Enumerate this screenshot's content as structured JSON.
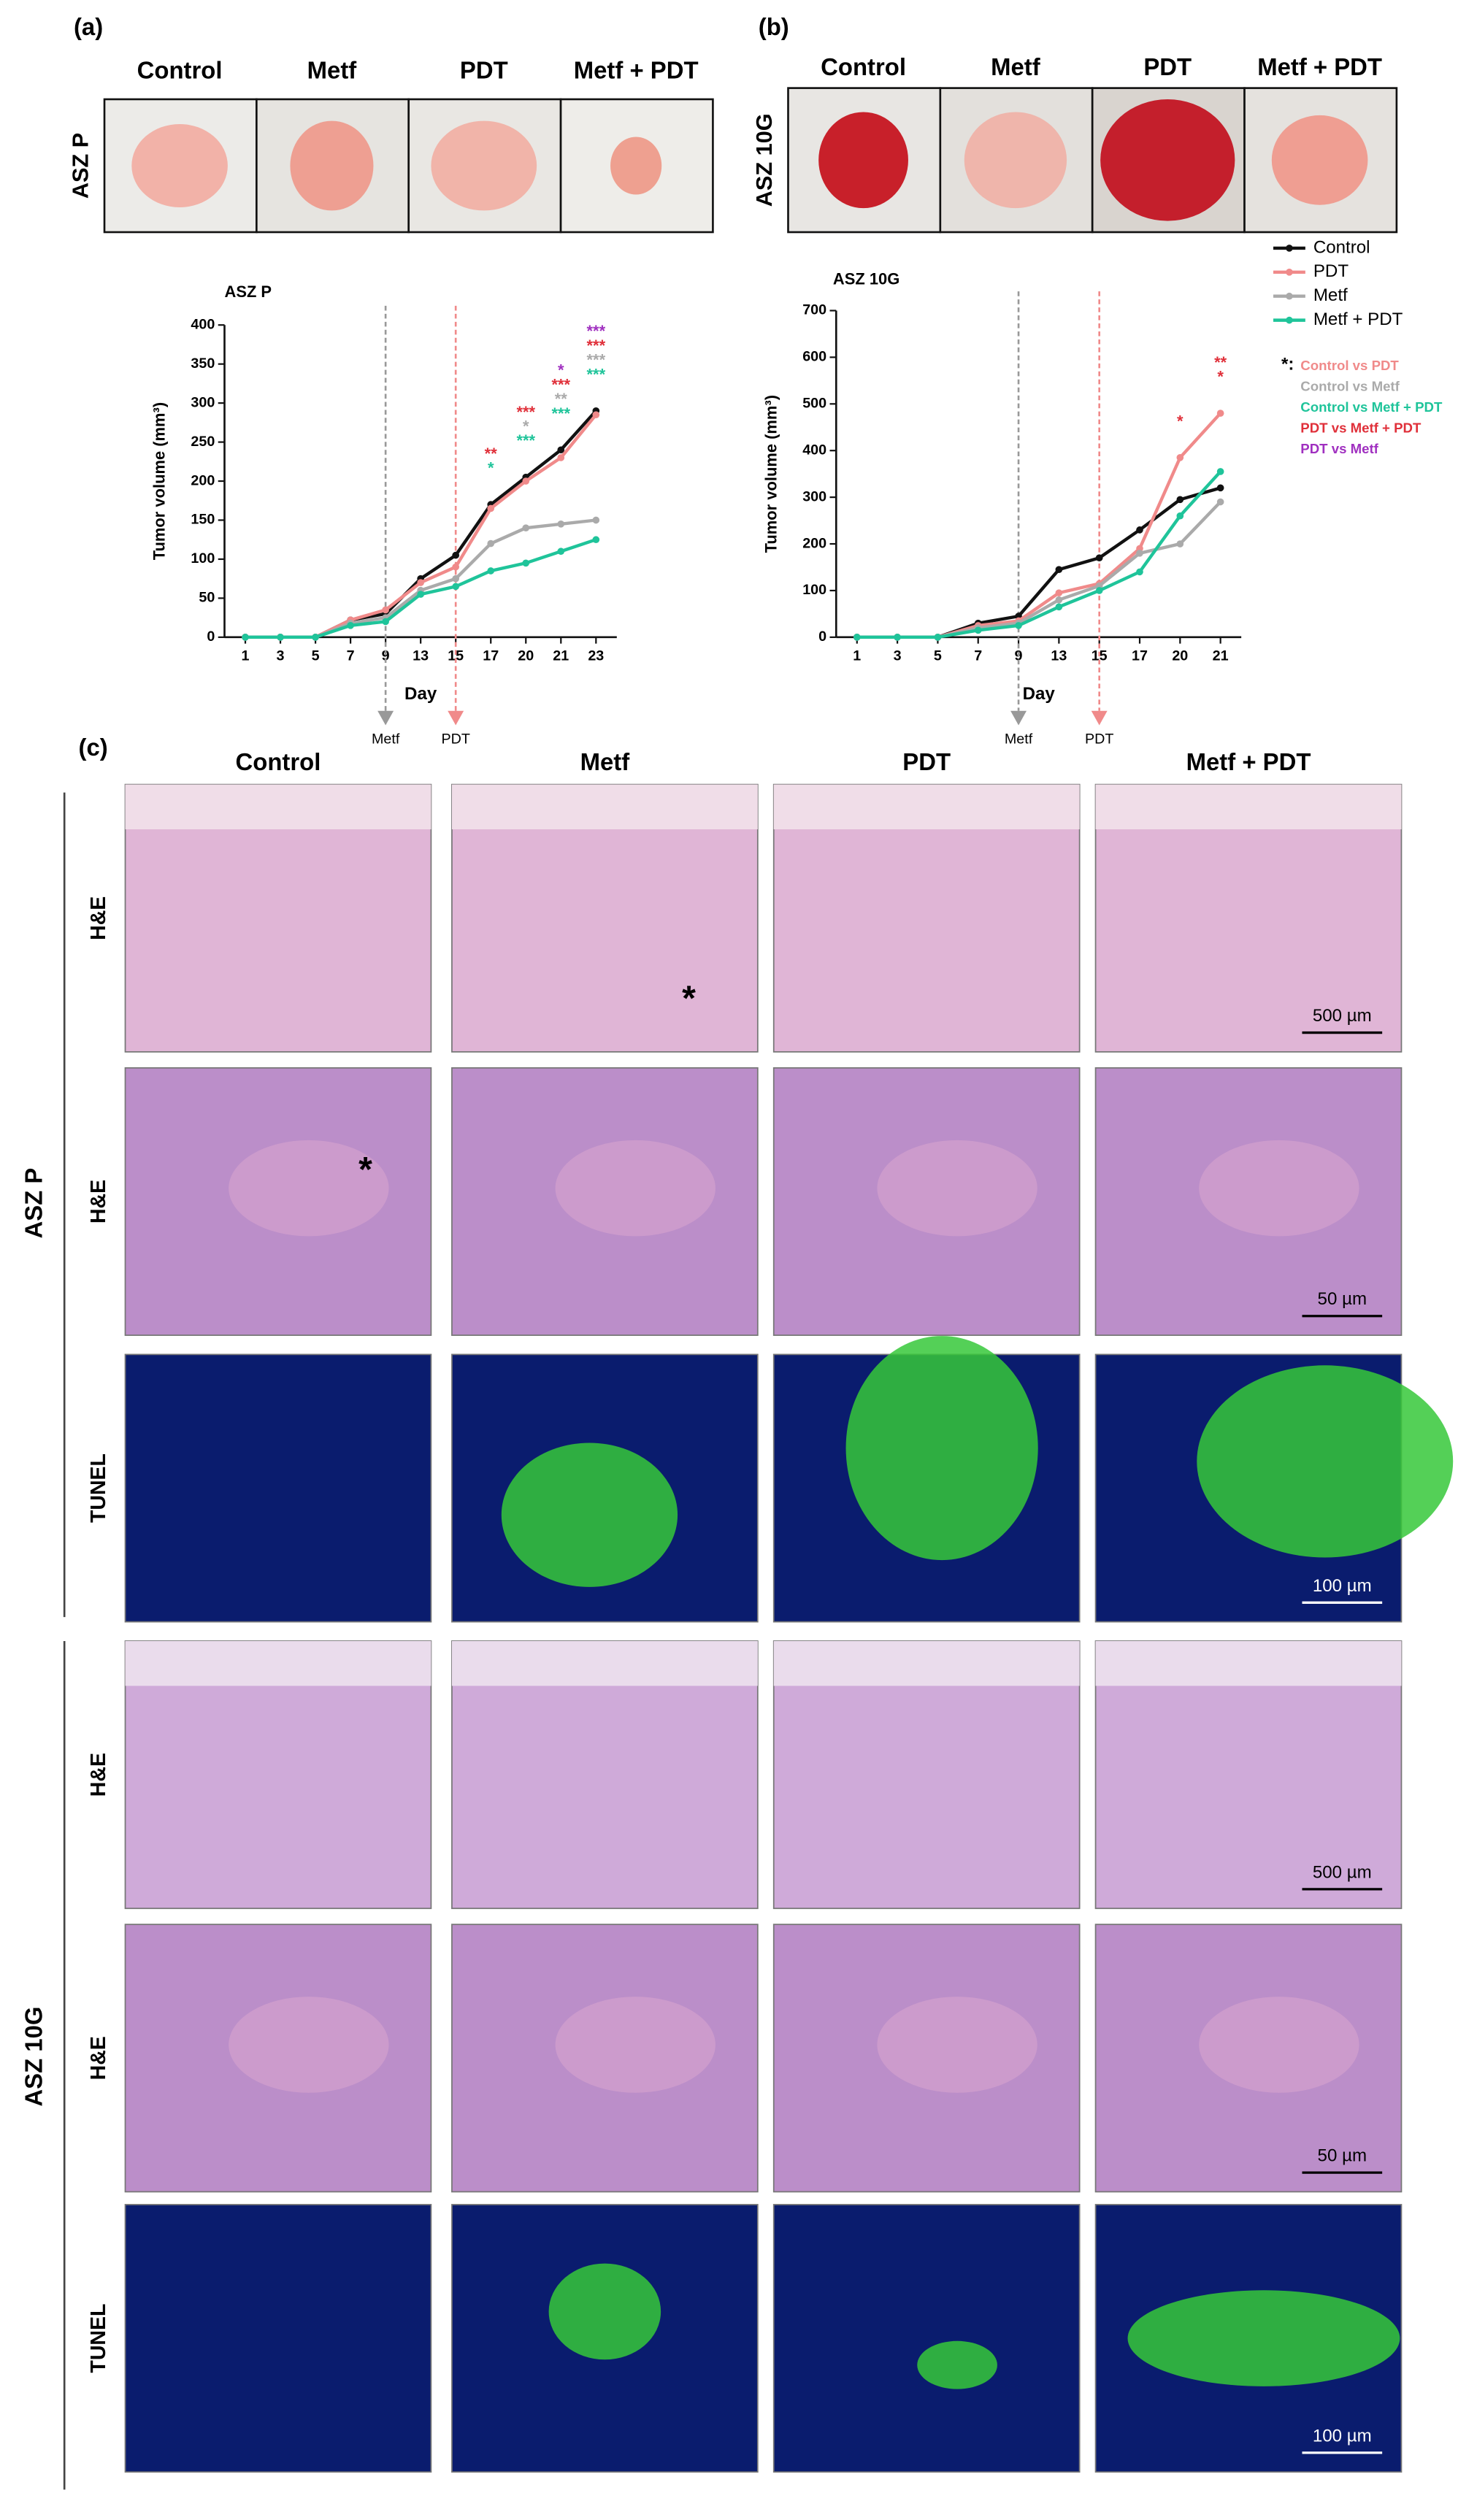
{
  "labels": {
    "a": "(a)",
    "b": "(b)",
    "c": "(c)"
  },
  "photos_a": {
    "row_label": "ASZ P",
    "columns": [
      "Control",
      "Metf",
      "PDT",
      "Metf + PDT"
    ]
  },
  "photos_b": {
    "row_label": "ASZ 10G",
    "columns": [
      "Control",
      "Metf",
      "PDT",
      "Metf + PDT"
    ]
  },
  "histology": {
    "columns": [
      "Control",
      "Metf",
      "PDT",
      "Metf + PDT"
    ],
    "groups": [
      {
        "label": "ASZ P",
        "rows": [
          {
            "stain": "H&E",
            "scale_bar": "500 µm",
            "asterisk": [
              null,
              "*",
              null,
              null
            ]
          },
          {
            "stain": "H&E",
            "scale_bar": "50 µm",
            "asterisk": [
              "*",
              null,
              null,
              null
            ]
          },
          {
            "stain": "TUNEL",
            "scale_bar": "100 µm",
            "asterisk": [
              null,
              null,
              null,
              null
            ]
          }
        ]
      },
      {
        "label": "ASZ 10G",
        "rows": [
          {
            "stain": "H&E",
            "scale_bar": "500 µm",
            "asterisk": [
              null,
              null,
              null,
              null
            ]
          },
          {
            "stain": "H&E",
            "scale_bar": "50 µm",
            "asterisk": [
              null,
              null,
              null,
              null
            ]
          },
          {
            "stain": "TUNEL",
            "scale_bar": "100 µm",
            "asterisk": [
              null,
              null,
              null,
              null
            ]
          }
        ]
      }
    ]
  },
  "chart_data": [
    {
      "type": "line",
      "title": "ASZ P",
      "x_label": "Day",
      "y_label": "Tumor volume (mm³)",
      "categories": [
        "1",
        "3",
        "5",
        "7",
        "9",
        "13",
        "15",
        "17",
        "20",
        "21",
        "23"
      ],
      "ylim": [
        0,
        400
      ],
      "yticks": [
        0,
        50,
        100,
        150,
        200,
        250,
        300,
        350,
        400
      ],
      "legend": false,
      "series": [
        {
          "name": "Control",
          "color": "#111111",
          "values": [
            0,
            0,
            0,
            22,
            30,
            75,
            105,
            170,
            205,
            240,
            290
          ]
        },
        {
          "name": "PDT",
          "color": "#f08a8a",
          "values": [
            0,
            0,
            0,
            22,
            35,
            70,
            90,
            165,
            200,
            230,
            285
          ]
        },
        {
          "name": "Metf",
          "color": "#aaaaaa",
          "values": [
            0,
            0,
            0,
            18,
            25,
            60,
            75,
            120,
            140,
            145,
            150
          ]
        },
        {
          "name": "Metf + PDT",
          "color": "#1fc49a",
          "values": [
            0,
            0,
            0,
            15,
            20,
            55,
            65,
            85,
            95,
            110,
            125
          ]
        }
      ],
      "annotations": [
        {
          "at": "9",
          "label": "Metf",
          "color": "#999999"
        },
        {
          "at": "15",
          "label": "PDT",
          "color": "#f08a8a"
        }
      ],
      "significance": [
        {
          "at": "17",
          "marks": [
            {
              "text": "**",
              "color": "#e0303a"
            },
            {
              "text": "*",
              "color": "#1fc49a"
            }
          ]
        },
        {
          "at": "20",
          "marks": [
            {
              "text": "***",
              "color": "#e0303a"
            },
            {
              "text": "*",
              "color": "#aaaaaa"
            },
            {
              "text": "***",
              "color": "#1fc49a"
            }
          ]
        },
        {
          "at": "21",
          "marks": [
            {
              "text": "*",
              "color": "#a030c0"
            },
            {
              "text": "***",
              "color": "#e0303a"
            },
            {
              "text": "**",
              "color": "#aaaaaa"
            },
            {
              "text": "***",
              "color": "#1fc49a"
            }
          ]
        },
        {
          "at": "23",
          "marks": [
            {
              "text": "***",
              "color": "#a030c0"
            },
            {
              "text": "***",
              "color": "#e0303a"
            },
            {
              "text": "***",
              "color": "#aaaaaa"
            },
            {
              "text": "***",
              "color": "#1fc49a"
            }
          ]
        }
      ]
    },
    {
      "type": "line",
      "title": "ASZ 10G",
      "x_label": "Day",
      "y_label": "Tumor volume (mm³)",
      "categories": [
        "1",
        "3",
        "5",
        "7",
        "9",
        "13",
        "15",
        "17",
        "20",
        "21"
      ],
      "ylim": [
        0,
        700
      ],
      "yticks": [
        0,
        100,
        200,
        300,
        400,
        500,
        600,
        700
      ],
      "legend": true,
      "series": [
        {
          "name": "Control",
          "color": "#111111",
          "values": [
            0,
            0,
            0,
            30,
            45,
            145,
            170,
            230,
            295,
            320
          ]
        },
        {
          "name": "PDT",
          "color": "#f08a8a",
          "values": [
            0,
            0,
            0,
            25,
            35,
            95,
            115,
            190,
            385,
            480
          ]
        },
        {
          "name": "Metf",
          "color": "#aaaaaa",
          "values": [
            0,
            0,
            0,
            20,
            30,
            80,
            110,
            180,
            200,
            290
          ]
        },
        {
          "name": "Metf + PDT",
          "color": "#1fc49a",
          "values": [
            0,
            0,
            0,
            15,
            25,
            65,
            100,
            140,
            260,
            355
          ]
        }
      ],
      "annotations": [
        {
          "at": "9",
          "label": "Metf",
          "color": "#999999"
        },
        {
          "at": "15",
          "label": "PDT",
          "color": "#f08a8a"
        }
      ],
      "significance": [
        {
          "at": "20",
          "marks": [
            {
              "text": "*",
              "color": "#e0303a"
            }
          ]
        },
        {
          "at": "21",
          "marks": [
            {
              "text": "**",
              "color": "#e0303a"
            },
            {
              "text": "*",
              "color": "#e0303a"
            }
          ]
        }
      ],
      "significance_legend": {
        "prefix": "*:",
        "entries": [
          {
            "text": "Control vs PDT",
            "color": "#f08a8a"
          },
          {
            "text": "Control vs Metf",
            "color": "#aaaaaa"
          },
          {
            "text": "Control vs Metf + PDT",
            "color": "#1fc49a"
          },
          {
            "text": "PDT vs Metf + PDT",
            "color": "#e0303a"
          },
          {
            "text": "PDT vs Metf",
            "color": "#a030c0"
          }
        ]
      }
    }
  ]
}
